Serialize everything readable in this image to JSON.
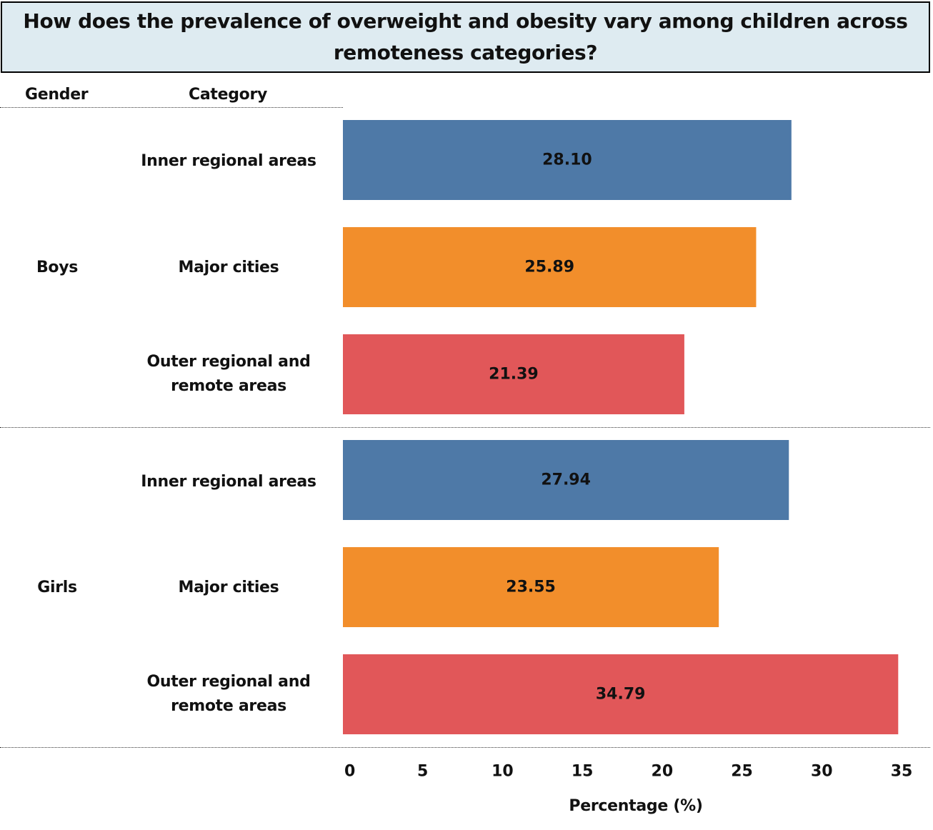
{
  "chart_data": {
    "type": "bar",
    "orientation": "horizontal",
    "title": "How does the prevalence of overweight and obesity vary among children across remoteness categories?",
    "row_headers": {
      "gender": "Gender",
      "category": "Category"
    },
    "xlabel": "Percentage (%)",
    "xlim": [
      0,
      35
    ],
    "xticks": [
      0,
      5,
      10,
      15,
      20,
      25,
      30,
      35
    ],
    "groups": [
      {
        "name": "Boys",
        "bars": [
          {
            "category": "Inner regional areas",
            "value": 28.1,
            "label": "28.10",
            "color": "#4e79a7"
          },
          {
            "category": "Major cities",
            "value": 25.89,
            "label": "25.89",
            "color": "#f28e2b"
          },
          {
            "category": "Outer regional and remote areas",
            "value": 21.39,
            "label": "21.39",
            "color": "#e15759"
          }
        ]
      },
      {
        "name": "Girls",
        "bars": [
          {
            "category": "Inner regional areas",
            "value": 27.94,
            "label": "27.94",
            "color": "#4e79a7"
          },
          {
            "category": "Major cities",
            "value": 23.55,
            "label": "23.55",
            "color": "#f28e2b"
          },
          {
            "category": "Outer regional and remote areas",
            "value": 34.79,
            "label": "34.79",
            "color": "#e15759"
          }
        ]
      }
    ]
  }
}
